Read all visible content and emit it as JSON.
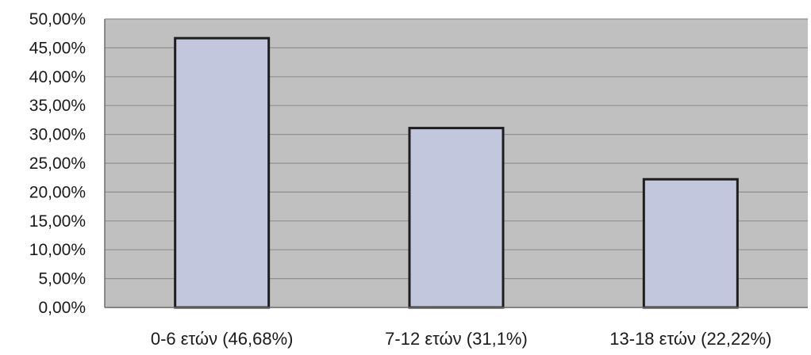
{
  "chart_data": {
    "type": "bar",
    "categories": [
      "0-6 ετών (46,68%)",
      "7-12 ετών (31,1%)",
      "13-18 ετών (22,22%)"
    ],
    "values": [
      46.68,
      31.1,
      22.22
    ],
    "yticks": [
      "0,00%",
      "5,00%",
      "10,00%",
      "15,00%",
      "20,00%",
      "25,00%",
      "30,00%",
      "35,00%",
      "40,00%",
      "45,00%",
      "50,00%"
    ],
    "ylim": [
      0,
      50
    ],
    "ytick_step": 5,
    "grid": true,
    "legend": "none",
    "colors": {
      "plot_background": "#c0c0c0",
      "bar_fill": "#c3c7dd",
      "bar_stroke": "#1e1e1e",
      "grid_line": "#8f8f8f",
      "axis_line": "#6e6e6e"
    }
  }
}
